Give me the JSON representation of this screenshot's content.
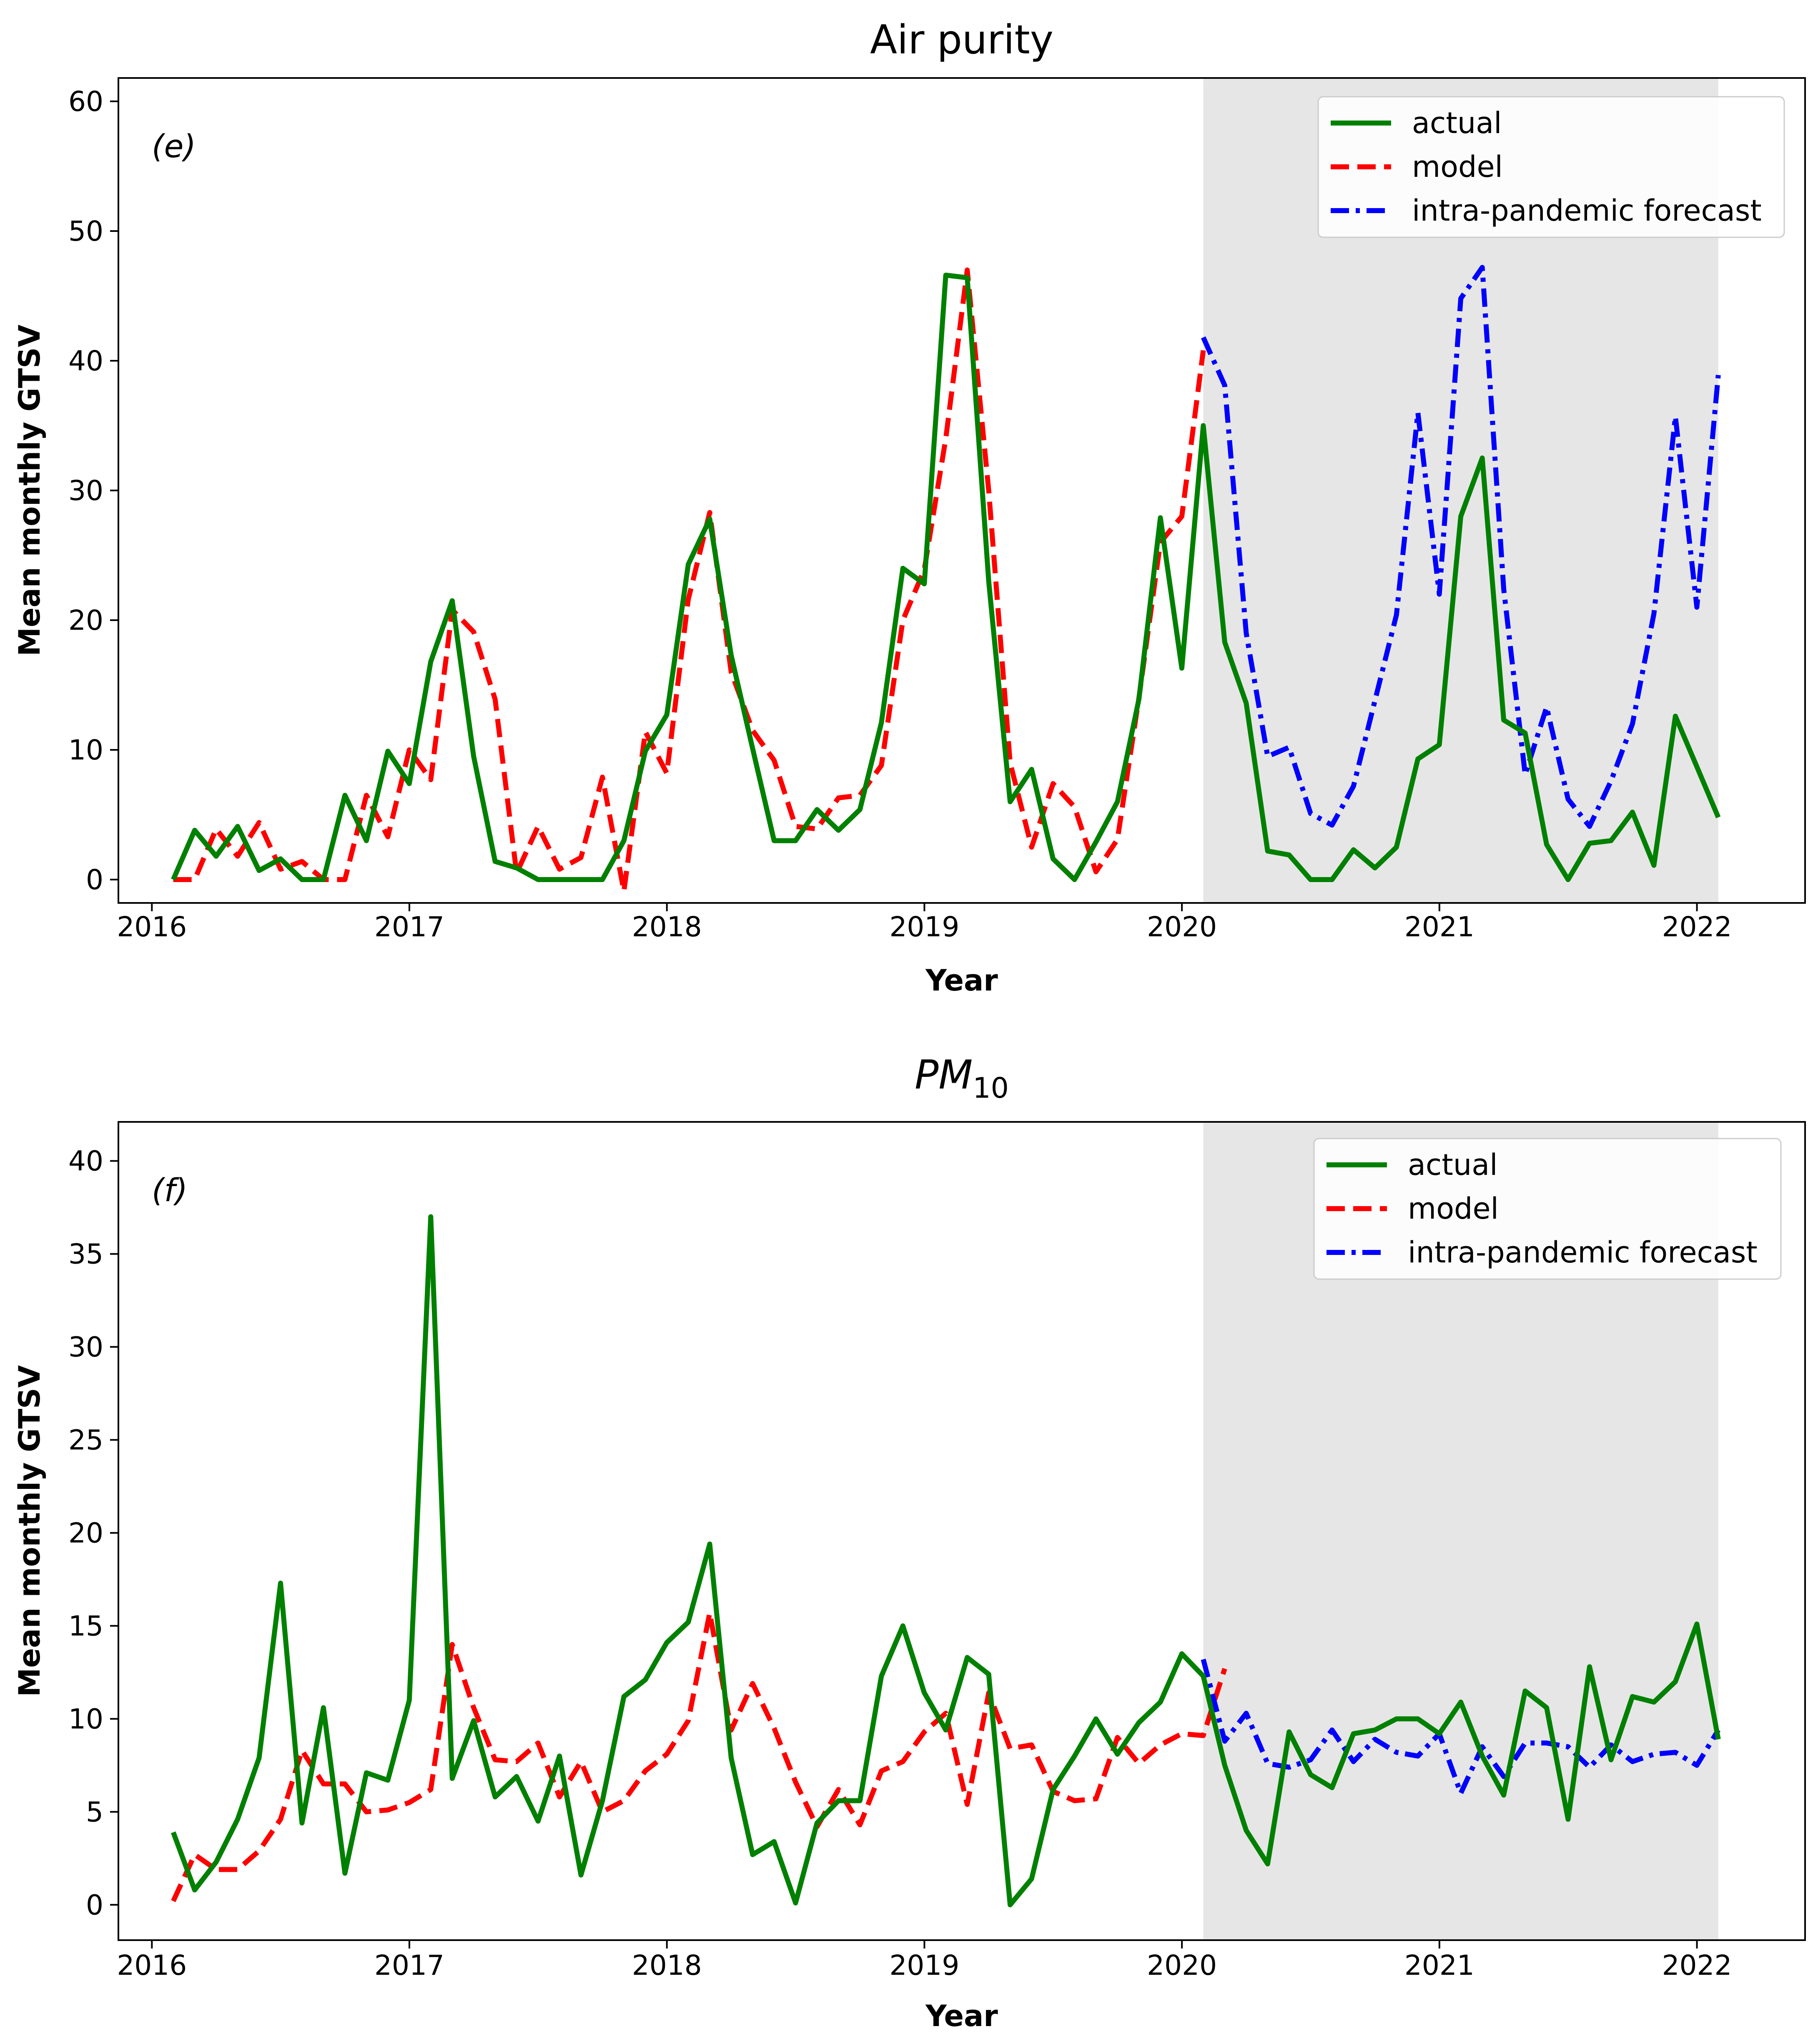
{
  "chart_data": [
    {
      "type": "line",
      "panel": "(e)",
      "title": "Air purity",
      "title_subscript": "",
      "xlabel": "Year",
      "ylabel": "Mean monthly GTSV",
      "xlim": [
        2015.87,
        2022.42
      ],
      "ylim": [
        -1.8,
        61.8
      ],
      "yticks": [
        0,
        10,
        20,
        30,
        40,
        50,
        60
      ],
      "xticks": [
        2016,
        2017,
        2018,
        2019,
        2020,
        2021,
        2022
      ],
      "shaded_region": [
        2020.083,
        2022.083
      ],
      "shaded_color": "#e6e6e6",
      "legend": {
        "location": "upper right",
        "labels": [
          "actual",
          "model",
          "intra-pandemic forecast"
        ]
      },
      "series": [
        {
          "name": "actual",
          "color": "#008000",
          "dash": "solid",
          "start": 2016.083,
          "values": [
            0,
            3.8,
            1.8,
            4.1,
            0.7,
            1.6,
            0,
            0,
            6.5,
            3,
            9.9,
            7.4,
            16.8,
            21.5,
            9.5,
            1.4,
            0.9,
            0,
            0,
            0,
            0,
            3,
            9.9,
            12.7,
            24.3,
            27.8,
            17.3,
            10.1,
            3,
            3,
            5.4,
            3.8,
            5.4,
            12.1,
            24,
            22.8,
            46.6,
            46.4,
            23,
            6,
            8.5,
            1.6,
            0,
            2.9,
            6,
            13.9,
            27.9,
            16.3,
            35,
            18.3,
            13.6,
            2.2,
            1.9,
            0,
            0,
            2.3,
            0.9,
            2.5,
            9.3,
            10.4,
            28,
            32.5,
            12.3,
            11.3,
            2.7,
            0,
            2.8,
            3,
            5.2,
            1.1,
            12.6,
            8.7,
            4.8
          ]
        },
        {
          "name": "model",
          "color": "#ff0000",
          "dash": "dashed",
          "start": 2016.083,
          "values": [
            0,
            0,
            3.9,
            1.8,
            4.4,
            0.8,
            1.4,
            0,
            0,
            6.5,
            3.3,
            10,
            7.7,
            20.8,
            19.1,
            13.9,
            0.5,
            4.1,
            0.8,
            1.7,
            7.9,
            -0.9,
            11.4,
            8.2,
            21.6,
            28.3,
            16,
            11.5,
            9.2,
            4.1,
            3.9,
            6.3,
            6.5,
            8.8,
            20,
            23.9,
            34,
            47,
            30,
            9,
            2.5,
            7.4,
            5.6,
            0.6,
            3.1,
            14,
            26,
            28,
            40.8
          ]
        },
        {
          "name": "intra-pandemic forecast",
          "color": "#0000ff",
          "dash": "dashdot",
          "start": 2020.083,
          "values": [
            41.8,
            38.1,
            19,
            9.5,
            10.2,
            5.1,
            4.2,
            7.2,
            13.8,
            20.4,
            36,
            22,
            44.8,
            47.2,
            22.4,
            8.1,
            13.3,
            6.2,
            4.1,
            7.6,
            12,
            20.5,
            35.7,
            21,
            38.9
          ]
        }
      ]
    },
    {
      "type": "line",
      "panel": "(f)",
      "title": "PM",
      "title_subscript": "10",
      "xlabel": "Year",
      "ylabel": "Mean monthly GTSV",
      "xlim": [
        2015.87,
        2022.42
      ],
      "ylim": [
        -1.9,
        42.1
      ],
      "yticks": [
        0,
        5,
        10,
        15,
        20,
        25,
        30,
        35,
        40
      ],
      "xticks": [
        2016,
        2017,
        2018,
        2019,
        2020,
        2021,
        2022
      ],
      "shaded_region": [
        2020.083,
        2022.083
      ],
      "shaded_color": "#e6e6e6",
      "legend": {
        "location": "upper right",
        "labels": [
          "actual",
          "model",
          "intra-pandemic forecast"
        ]
      },
      "series": [
        {
          "name": "actual",
          "color": "#008000",
          "dash": "solid",
          "start": 2016.083,
          "values": [
            3.9,
            0.8,
            2.3,
            4.6,
            7.9,
            17.3,
            4.4,
            10.6,
            1.7,
            7.1,
            6.7,
            11,
            37,
            6.8,
            9.9,
            5.8,
            6.9,
            4.5,
            8,
            1.6,
            5.6,
            11.2,
            12.1,
            14.1,
            15.2,
            19.4,
            7.9,
            2.7,
            3.4,
            0.1,
            4.4,
            5.6,
            5.6,
            12.3,
            15,
            11.4,
            9.4,
            13.3,
            12.4,
            0,
            1.4,
            6.2,
            8,
            10,
            8.1,
            9.8,
            10.9,
            13.5,
            12.3,
            7.5,
            4,
            2.2,
            9.3,
            7,
            6.3,
            9.2,
            9.4,
            10,
            10,
            9.2,
            10.9,
            8,
            5.9,
            11.5,
            10.6,
            4.6,
            12.8,
            7.8,
            11.2,
            10.9,
            12,
            15.1,
            8.9
          ]
        },
        {
          "name": "model",
          "color": "#ff0000",
          "dash": "dashed",
          "start": 2016.083,
          "values": [
            0.2,
            2.7,
            1.9,
            1.9,
            2.9,
            4.6,
            8.3,
            6.5,
            6.5,
            5,
            5.1,
            5.5,
            6.2,
            14,
            10.6,
            7.8,
            7.7,
            8.7,
            5.8,
            7.7,
            5,
            5.6,
            7.2,
            8.1,
            9.9,
            15.7,
            9.4,
            11.9,
            9.5,
            6.6,
            4.2,
            6.2,
            4.3,
            7.2,
            7.7,
            9.3,
            10.3,
            5.4,
            11.4,
            8.4,
            8.6,
            6.1,
            5.6,
            5.7,
            9,
            7.6,
            8.6,
            9.2,
            9.1,
            12.7
          ]
        },
        {
          "name": "intra-pandemic forecast",
          "color": "#0000ff",
          "dash": "dashdot",
          "start": 2020.083,
          "values": [
            13.2,
            8.8,
            10.3,
            7.6,
            7.4,
            7.8,
            9.4,
            7.7,
            8.9,
            8.2,
            8,
            9.2,
            6,
            8.5,
            6.9,
            8.7,
            8.7,
            8.5,
            7.4,
            8.6,
            7.7,
            8.1,
            8.2,
            7.5,
            9.4
          ]
        }
      ]
    }
  ]
}
